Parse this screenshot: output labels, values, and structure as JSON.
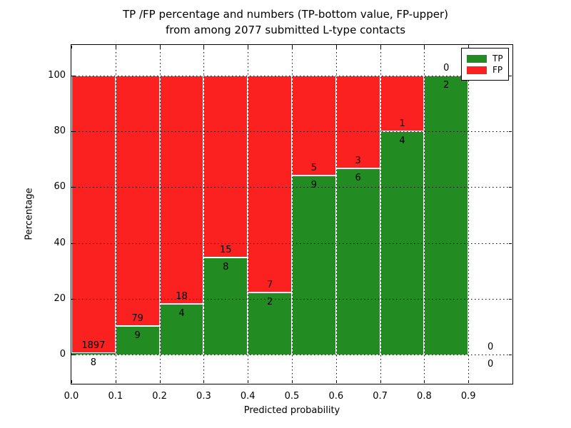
{
  "figure": {
    "title_line1": "TP /FP percentage and numbers (TP-bottom value, FP-upper)",
    "title_line2": "from among 2077 submitted L-type contacts",
    "xlabel": "Predicted probability",
    "ylabel": "Percentage"
  },
  "legend": {
    "items": [
      {
        "name": "TP",
        "label": "TP",
        "color": "#228b22"
      },
      {
        "name": "FP",
        "label": "FP",
        "color": "#fb2121"
      }
    ]
  },
  "chart_data": {
    "type": "bar",
    "stacked": true,
    "title": "TP /FP percentage and numbers (TP-bottom value, FP-upper)\nfrom among 2077 submitted L-type contacts",
    "xlabel": "Predicted probability",
    "ylabel": "Percentage",
    "xlim": [
      0.0,
      1.0
    ],
    "ylim": [
      -10.5,
      111.0
    ],
    "grid": true,
    "gridline_style": "dotted",
    "legend_position": "upper right",
    "total_submitted": 2077,
    "colors": {
      "tp": "#228b22",
      "fp": "#fb2121"
    },
    "xtick_values": [
      0.0,
      0.1,
      0.2,
      0.3,
      0.4,
      0.5,
      0.6,
      0.7,
      0.8,
      0.9
    ],
    "xtick_labels": [
      "0.0",
      "0.1",
      "0.2",
      "0.3",
      "0.4",
      "0.5",
      "0.6",
      "0.7",
      "0.8",
      "0.9"
    ],
    "ytick_values": [
      0,
      20,
      40,
      60,
      80,
      100
    ],
    "ytick_labels": [
      "0",
      "20",
      "40",
      "60",
      "80",
      "100"
    ],
    "bins": [
      {
        "x_start": 0.0,
        "x_end": 0.1,
        "tp": 8,
        "fp": 1897,
        "tp_pct": 0.42,
        "fp_pct": 99.58,
        "has_bar": true
      },
      {
        "x_start": 0.1,
        "x_end": 0.2,
        "tp": 9,
        "fp": 79,
        "tp_pct": 10.23,
        "fp_pct": 89.77,
        "has_bar": true
      },
      {
        "x_start": 0.2,
        "x_end": 0.3,
        "tp": 4,
        "fp": 18,
        "tp_pct": 18.18,
        "fp_pct": 81.82,
        "has_bar": true
      },
      {
        "x_start": 0.3,
        "x_end": 0.4,
        "tp": 8,
        "fp": 15,
        "tp_pct": 34.78,
        "fp_pct": 65.22,
        "has_bar": true
      },
      {
        "x_start": 0.4,
        "x_end": 0.5,
        "tp": 2,
        "fp": 7,
        "tp_pct": 22.22,
        "fp_pct": 77.78,
        "has_bar": true
      },
      {
        "x_start": 0.5,
        "x_end": 0.6,
        "tp": 9,
        "fp": 5,
        "tp_pct": 64.29,
        "fp_pct": 35.71,
        "has_bar": true
      },
      {
        "x_start": 0.6,
        "x_end": 0.7,
        "tp": 6,
        "fp": 3,
        "tp_pct": 66.67,
        "fp_pct": 33.33,
        "has_bar": true
      },
      {
        "x_start": 0.7,
        "x_end": 0.8,
        "tp": 4,
        "fp": 1,
        "tp_pct": 80.0,
        "fp_pct": 20.0,
        "has_bar": true
      },
      {
        "x_start": 0.8,
        "x_end": 0.9,
        "tp": 2,
        "fp": 0,
        "tp_pct": 100.0,
        "fp_pct": 0.0,
        "has_bar": true
      },
      {
        "x_start": 0.9,
        "x_end": 1.0,
        "tp": 0,
        "fp": 0,
        "tp_pct": 0.0,
        "fp_pct": 0.0,
        "has_bar": false
      }
    ]
  }
}
